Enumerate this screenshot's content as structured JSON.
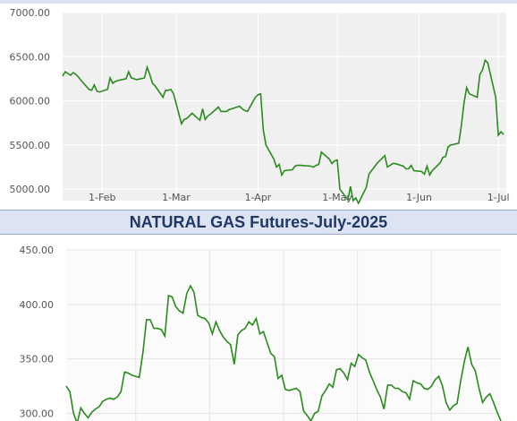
{
  "colors": {
    "line": "#2a8a1e",
    "plot_background": "#f0f0f0",
    "grid": "#ffffff",
    "title_background": "#dce3f2",
    "title_text": "#1f3864"
  },
  "chart_data": [
    {
      "type": "line",
      "title": "",
      "xlabel": "",
      "ylabel": "",
      "ylim": [
        4870,
        7000
      ],
      "y_ticks": [
        5000,
        5500,
        6000,
        6500,
        7000
      ],
      "y_tick_labels": [
        "5000.00",
        "5500.00",
        "6000.00",
        "6500.00",
        "7000.00"
      ],
      "x_tick_labels": [
        "1-Feb",
        "1-Mar",
        "1-Apr",
        "1-May",
        "1-Jun",
        "1-Jul"
      ],
      "x_tick_dates": [
        "2025-02-01",
        "2025-03-01",
        "2025-04-01",
        "2025-05-01",
        "2025-06-01",
        "2025-07-01"
      ],
      "xlim": [
        "2025-01-17",
        "2025-07-04"
      ],
      "grid": true,
      "series": [
        {
          "x": [
            "2025-01-17",
            "2025-01-18",
            "2025-01-20",
            "2025-01-21",
            "2025-01-22",
            "2025-01-23",
            "2025-01-24",
            "2025-01-27",
            "2025-01-28",
            "2025-01-29",
            "2025-01-30",
            "2025-01-31",
            "2025-02-03",
            "2025-02-04",
            "2025-02-05",
            "2025-02-06",
            "2025-02-07",
            "2025-02-10",
            "2025-02-11",
            "2025-02-12",
            "2025-02-13",
            "2025-02-14",
            "2025-02-17",
            "2025-02-18",
            "2025-02-19",
            "2025-02-20",
            "2025-02-21",
            "2025-02-24",
            "2025-02-25",
            "2025-02-26",
            "2025-02-27",
            "2025-02-28",
            "2025-03-03",
            "2025-03-04",
            "2025-03-05",
            "2025-03-06",
            "2025-03-07",
            "2025-03-10",
            "2025-03-11",
            "2025-03-12",
            "2025-03-13",
            "2025-03-14",
            "2025-03-17",
            "2025-03-18",
            "2025-03-19",
            "2025-03-20",
            "2025-03-21",
            "2025-03-24",
            "2025-03-25",
            "2025-03-26",
            "2025-03-27",
            "2025-03-28",
            "2025-03-31",
            "2025-04-01",
            "2025-04-02",
            "2025-04-03",
            "2025-04-04",
            "2025-04-07",
            "2025-04-08",
            "2025-04-09",
            "2025-04-10",
            "2025-04-11",
            "2025-04-14",
            "2025-04-15",
            "2025-04-16",
            "2025-04-17",
            "2025-04-21",
            "2025-04-22",
            "2025-04-23",
            "2025-04-24",
            "2025-04-25",
            "2025-04-28",
            "2025-04-29",
            "2025-04-30",
            "2025-05-01",
            "2025-05-02",
            "2025-05-05",
            "2025-05-06",
            "2025-05-07",
            "2025-05-08",
            "2025-05-09",
            "2025-05-12",
            "2025-05-13",
            "2025-05-14",
            "2025-05-15",
            "2025-05-16",
            "2025-05-19",
            "2025-05-20",
            "2025-05-21",
            "2025-05-22",
            "2025-05-23",
            "2025-05-26",
            "2025-05-27",
            "2025-05-28",
            "2025-05-29",
            "2025-05-30",
            "2025-06-02",
            "2025-06-03",
            "2025-06-04",
            "2025-06-05",
            "2025-06-06",
            "2025-06-09",
            "2025-06-10",
            "2025-06-11",
            "2025-06-12",
            "2025-06-13",
            "2025-06-16",
            "2025-06-17",
            "2025-06-18",
            "2025-06-19",
            "2025-06-20",
            "2025-06-23",
            "2025-06-24",
            "2025-06-25",
            "2025-06-26",
            "2025-06-27",
            "2025-06-30",
            "2025-07-01",
            "2025-07-02",
            "2025-07-03"
          ],
          "y": [
            6280,
            6330,
            6290,
            6320,
            6300,
            6270,
            6230,
            6130,
            6120,
            6180,
            6110,
            6100,
            6130,
            6260,
            6200,
            6220,
            6230,
            6250,
            6330,
            6260,
            6250,
            6240,
            6260,
            6380,
            6300,
            6200,
            6170,
            6040,
            6120,
            6120,
            6130,
            6080,
            5740,
            5790,
            5800,
            5830,
            5860,
            5780,
            5910,
            5790,
            5830,
            5850,
            5930,
            5880,
            5880,
            5880,
            5900,
            5930,
            5940,
            5910,
            5890,
            5880,
            6040,
            6070,
            6080,
            5670,
            5500,
            5340,
            5250,
            5280,
            5160,
            5210,
            5220,
            5260,
            5270,
            5270,
            5260,
            5250,
            5270,
            5280,
            5420,
            5340,
            5290,
            5320,
            5330,
            5000,
            4880,
            5030,
            4870,
            4900,
            4840,
            5020,
            5170,
            5210,
            5250,
            5290,
            5380,
            5250,
            5270,
            5290,
            5290,
            5260,
            5230,
            5230,
            5270,
            5210,
            5200,
            5170,
            5260,
            5160,
            5210,
            5300,
            5360,
            5370,
            5480,
            5500,
            5520,
            5720,
            5980,
            6150,
            6080,
            6040,
            6300,
            6350,
            6460,
            6430,
            6040,
            5610,
            5650,
            5620
          ]
        }
      ]
    },
    {
      "type": "line",
      "title": "NATURAL GAS Futures-July-2025",
      "xlabel": "",
      "ylabel": "",
      "ylim": [
        293,
        450
      ],
      "y_ticks": [
        300,
        350,
        400,
        450
      ],
      "y_tick_labels": [
        "300.00",
        "350.00",
        "400.00",
        "450.00"
      ],
      "grid": true,
      "series": [
        {
          "y": [
            325,
            320,
            300,
            291,
            305,
            300,
            296,
            301,
            304,
            306,
            311,
            313,
            314,
            313,
            315,
            320,
            338,
            337,
            335,
            334,
            333,
            356,
            386,
            386,
            378,
            378,
            377,
            371,
            408,
            407,
            398,
            394,
            392,
            410,
            417,
            411,
            390,
            388,
            387,
            383,
            373,
            384,
            376,
            370,
            366,
            363,
            345,
            372,
            376,
            378,
            384,
            381,
            387,
            373,
            375,
            365,
            355,
            352,
            332,
            335,
            322,
            321,
            322,
            323,
            320,
            302,
            298,
            293,
            300,
            302,
            316,
            321,
            327,
            324,
            340,
            341,
            337,
            331,
            346,
            343,
            354,
            351,
            349,
            338,
            330,
            322,
            315,
            304,
            326,
            326,
            323,
            323,
            320,
            319,
            313,
            330,
            328,
            327,
            323,
            322,
            325,
            331,
            334,
            325,
            310,
            303,
            307,
            309,
            330,
            348,
            361,
            345,
            339,
            323,
            310,
            315,
            318,
            310,
            301,
            293
          ]
        }
      ]
    }
  ]
}
